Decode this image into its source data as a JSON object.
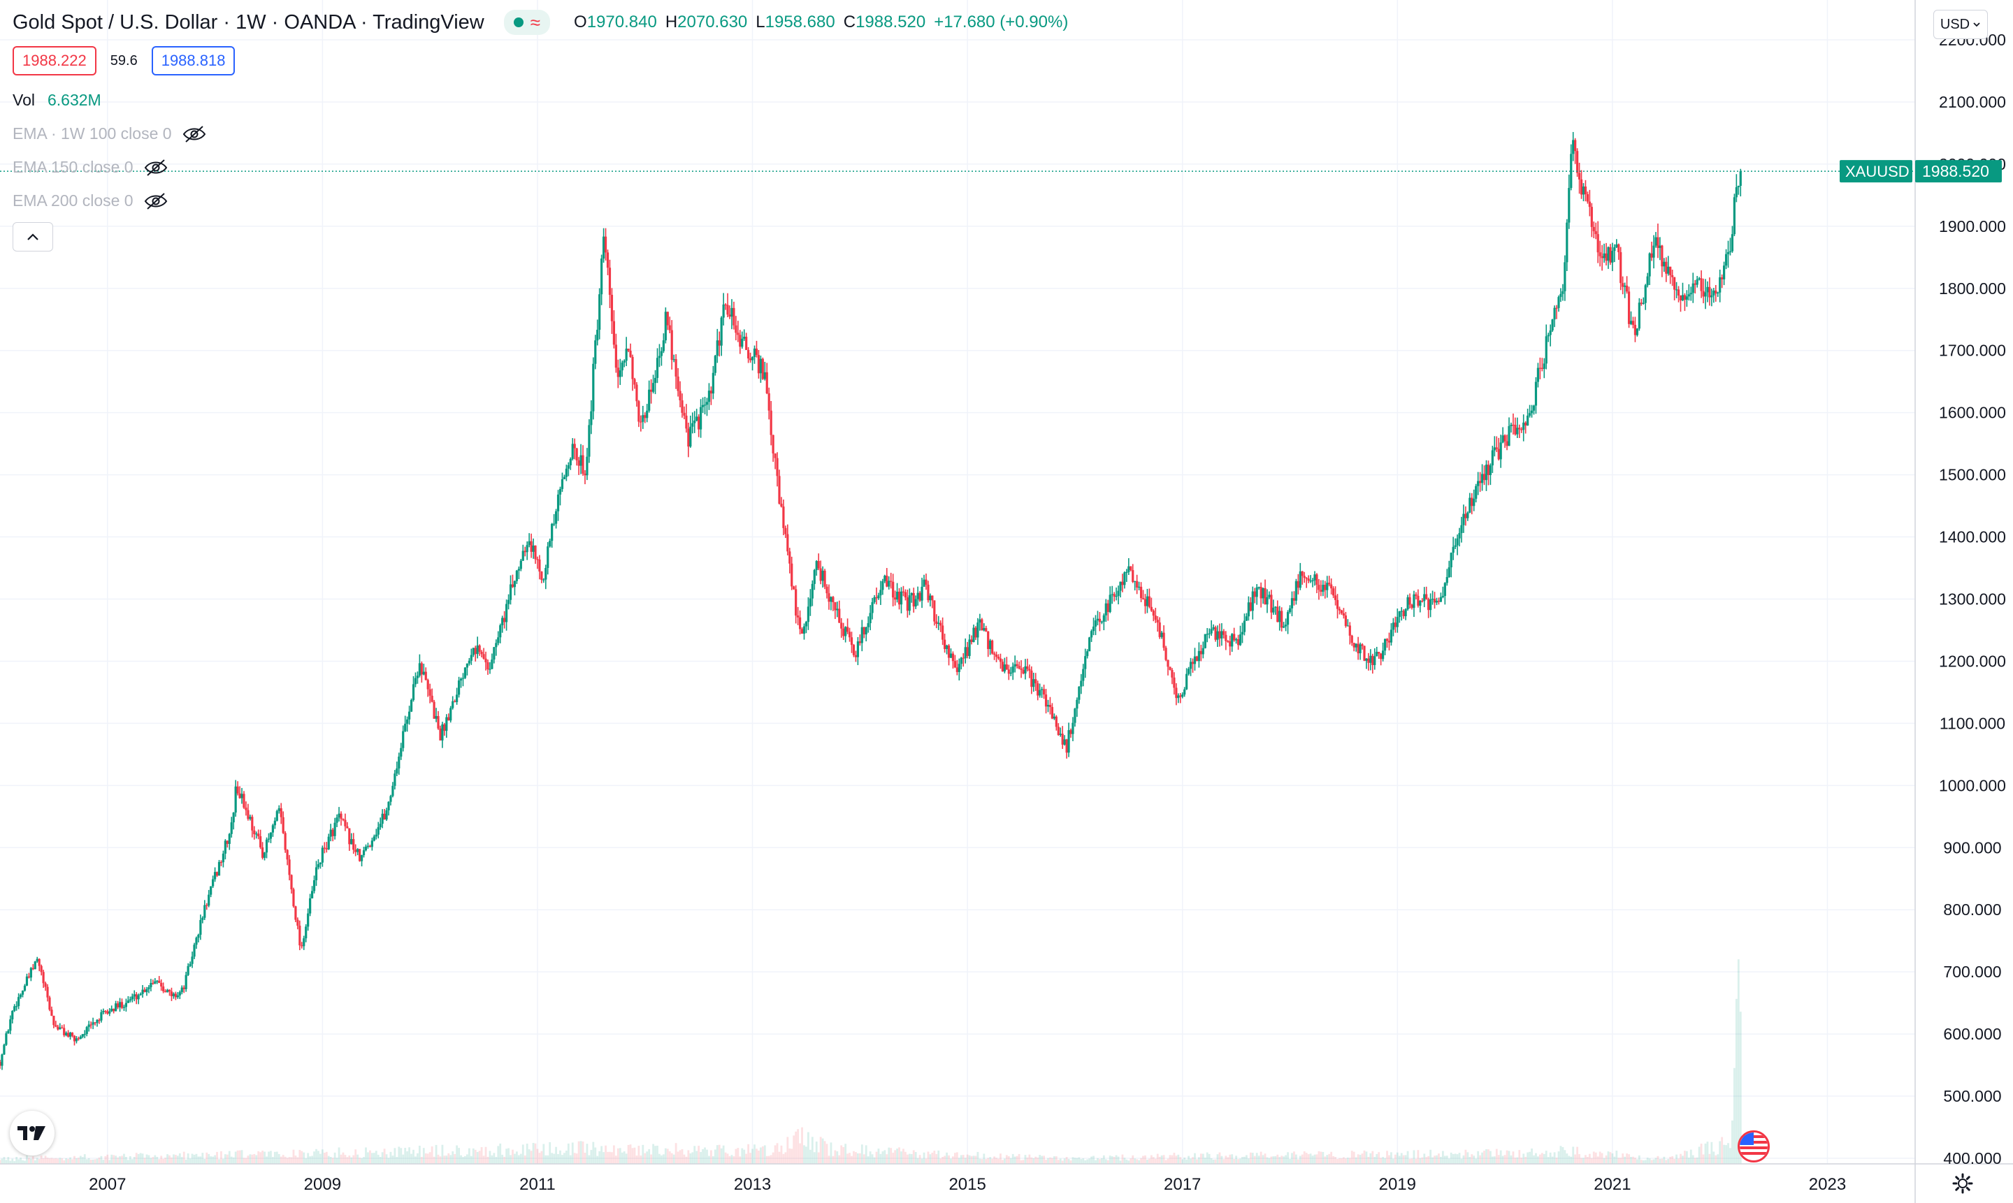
{
  "header": {
    "title": "Gold Spot / U.S. Dollar · 1W · OANDA · TradingView",
    "ohlc": {
      "open_label": "O",
      "open": "1970.840",
      "high_label": "H",
      "high": "2070.630",
      "low_label": "L",
      "low": "1958.680",
      "close_label": "C",
      "close": "1988.520",
      "change": "+17.680 (+0.90%)"
    },
    "bid": "1988.222",
    "spread": "59.6",
    "ask": "1988.818",
    "volume_label": "Vol",
    "volume_value": "6.632M",
    "indicators": [
      {
        "label": "EMA · 1W 100 close 0"
      },
      {
        "label": "EMA 150 close 0"
      },
      {
        "label": "EMA 200 close 0"
      }
    ],
    "icons": {
      "visibility": "eye-crossed-icon",
      "collapse": "chevron-up-icon"
    }
  },
  "currency_selector": {
    "label": "USD"
  },
  "price_tag": {
    "symbol": "XAUUSD",
    "price": "1988.520"
  },
  "footer": {
    "logo": "tradingview-logo-icon",
    "event": "us-flag-icon",
    "settings": "gear-icon"
  },
  "colors": {
    "up": "#089981",
    "down": "#f23645",
    "grid": "#f0f3fa",
    "text": "#131722",
    "axis_bg": "#ffffff"
  },
  "chart_data": {
    "type": "candlestick",
    "symbol": "XAUUSD",
    "timeframe": "1W",
    "ylim": [
      400,
      2200
    ],
    "y_ticks": [
      400,
      500,
      600,
      700,
      800,
      900,
      1000,
      1100,
      1200,
      1300,
      1400,
      1500,
      1600,
      1700,
      1800,
      1900,
      2000,
      2100,
      2200
    ],
    "y_tick_labels": [
      "400.000",
      "500.000",
      "600.000",
      "700.000",
      "800.000",
      "900.000",
      "1000.000",
      "1100.000",
      "1200.000",
      "1300.000",
      "1400.000",
      "1500.000",
      "1600.000",
      "1700.000",
      "1800.000",
      "1900.000",
      "2000.000",
      "2100.000",
      "2200.000"
    ],
    "x_range": [
      2006.0,
      2023.4
    ],
    "x_ticks": [
      2007,
      2009,
      2011,
      2013,
      2015,
      2017,
      2019,
      2021,
      2023
    ],
    "x_tick_labels": [
      "2007",
      "2009",
      "2011",
      "2013",
      "2015",
      "2017",
      "2019",
      "2021",
      "2023"
    ],
    "grid": true,
    "last_price": 1988.52,
    "price_path": [
      [
        2006.0,
        555
      ],
      [
        2006.12,
        640
      ],
      [
        2006.35,
        720
      ],
      [
        2006.5,
        615
      ],
      [
        2006.7,
        590
      ],
      [
        2006.95,
        630
      ],
      [
        2007.3,
        665
      ],
      [
        2007.45,
        690
      ],
      [
        2007.6,
        660
      ],
      [
        2007.7,
        670
      ],
      [
        2007.9,
        800
      ],
      [
        2008.15,
        930
      ],
      [
        2008.2,
        1000
      ],
      [
        2008.45,
        890
      ],
      [
        2008.6,
        960
      ],
      [
        2008.8,
        735
      ],
      [
        2008.95,
        870
      ],
      [
        2009.15,
        950
      ],
      [
        2009.35,
        880
      ],
      [
        2009.6,
        960
      ],
      [
        2009.9,
        1200
      ],
      [
        2010.1,
        1080
      ],
      [
        2010.4,
        1230
      ],
      [
        2010.55,
        1190
      ],
      [
        2010.9,
        1400
      ],
      [
        2011.05,
        1340
      ],
      [
        2011.3,
        1540
      ],
      [
        2011.45,
        1510
      ],
      [
        2011.62,
        1880
      ],
      [
        2011.75,
        1640
      ],
      [
        2011.85,
        1720
      ],
      [
        2011.95,
        1560
      ],
      [
        2012.2,
        1750
      ],
      [
        2012.4,
        1560
      ],
      [
        2012.6,
        1620
      ],
      [
        2012.75,
        1780
      ],
      [
        2012.9,
        1710
      ],
      [
        2013.1,
        1670
      ],
      [
        2013.25,
        1460
      ],
      [
        2013.45,
        1230
      ],
      [
        2013.6,
        1360
      ],
      [
        2013.75,
        1290
      ],
      [
        2013.95,
        1210
      ],
      [
        2014.2,
        1330
      ],
      [
        2014.45,
        1290
      ],
      [
        2014.6,
        1320
      ],
      [
        2014.9,
        1180
      ],
      [
        2015.1,
        1260
      ],
      [
        2015.3,
        1190
      ],
      [
        2015.55,
        1180
      ],
      [
        2015.75,
        1130
      ],
      [
        2015.92,
        1060
      ],
      [
        2016.15,
        1240
      ],
      [
        2016.5,
        1350
      ],
      [
        2016.75,
        1270
      ],
      [
        2016.95,
        1140
      ],
      [
        2017.25,
        1250
      ],
      [
        2017.5,
        1230
      ],
      [
        2017.7,
        1320
      ],
      [
        2017.95,
        1260
      ],
      [
        2018.1,
        1340
      ],
      [
        2018.35,
        1320
      ],
      [
        2018.6,
        1220
      ],
      [
        2018.8,
        1200
      ],
      [
        2019.1,
        1300
      ],
      [
        2019.4,
        1290
      ],
      [
        2019.6,
        1430
      ],
      [
        2019.75,
        1480
      ],
      [
        2020.0,
        1560
      ],
      [
        2020.2,
        1580
      ],
      [
        2020.4,
        1720
      ],
      [
        2020.55,
        1810
      ],
      [
        2020.62,
        2030
      ],
      [
        2020.72,
        1950
      ],
      [
        2020.9,
        1860
      ],
      [
        2021.05,
        1850
      ],
      [
        2021.2,
        1720
      ],
      [
        2021.4,
        1880
      ],
      [
        2021.6,
        1780
      ],
      [
        2021.75,
        1800
      ],
      [
        2021.95,
        1800
      ],
      [
        2022.1,
        1850
      ],
      [
        2022.15,
        1980
      ],
      [
        2022.2,
        1988.52
      ]
    ],
    "volume_profile": [
      [
        2006.0,
        0.02
      ],
      [
        2011.5,
        0.06
      ],
      [
        2013.2,
        0.05
      ],
      [
        2013.45,
        0.1
      ],
      [
        2013.7,
        0.06
      ],
      [
        2014.5,
        0.04
      ],
      [
        2016.0,
        0.02
      ],
      [
        2017.0,
        0.03
      ],
      [
        2020.2,
        0.04
      ],
      [
        2020.6,
        0.05
      ],
      [
        2021.5,
        0.02
      ],
      [
        2022.1,
        0.08
      ],
      [
        2022.18,
        0.95
      ],
      [
        2022.2,
        0.18
      ]
    ]
  }
}
